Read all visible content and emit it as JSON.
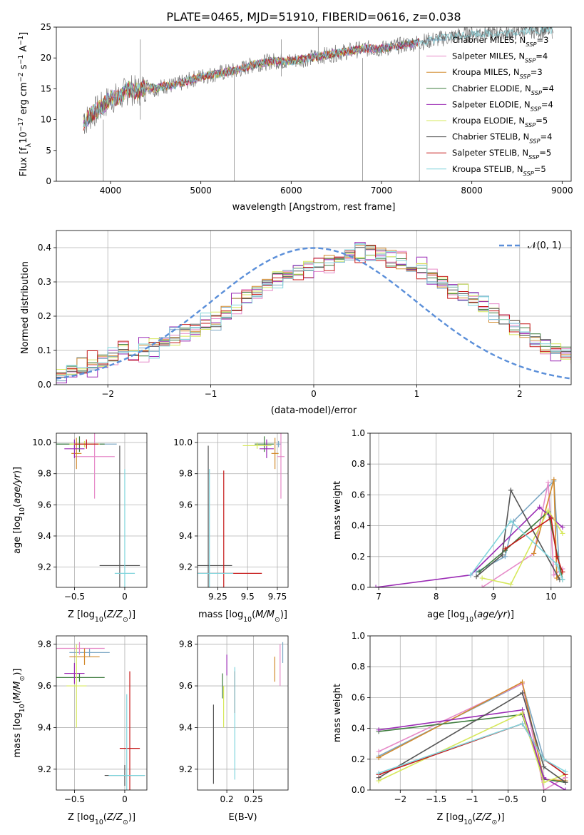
{
  "figure": {
    "title": "PLATE=0465, MJD=51910, FIBERID=0616, z=0.038"
  },
  "legend_entries": [
    {
      "model": "Chabrier MILES",
      "n": "3",
      "color": "#7ba7c4"
    },
    {
      "model": "Salpeter MILES",
      "n": "4",
      "color": "#e68ac8"
    },
    {
      "model": "Kroupa MILES",
      "n": "3",
      "color": "#d28a2c"
    },
    {
      "model": "Chabrier ELODIE",
      "n": "4",
      "color": "#3f7d3f"
    },
    {
      "model": "Salpeter ELODIE",
      "n": "4",
      "color": "#9b2bb5"
    },
    {
      "model": "Kroupa ELODIE",
      "n": "5",
      "color": "#d6e85b"
    },
    {
      "model": "Chabrier STELIB",
      "n": "4",
      "color": "#555555"
    },
    {
      "model": "Salpeter STELIB",
      "n": "5",
      "color": "#c61a1a"
    },
    {
      "model": "Kroupa STELIB",
      "n": "5",
      "color": "#80d4dc"
    }
  ],
  "chart_data": [
    {
      "type": "line",
      "name": "spectrum",
      "xlabel": "wavelength [Angstrom, rest frame]",
      "ylabel": "Flux [f_λ10^-17 erg cm^-2 s^-1 A^-1]",
      "xlim": [
        3400,
        9100
      ],
      "ylim": [
        0,
        25
      ],
      "xticks": [
        4000,
        5000,
        6000,
        7000,
        8000,
        9000
      ],
      "yticks": [
        0,
        5,
        10,
        15,
        20,
        25
      ],
      "legend": "top-right",
      "grid": false,
      "observed": {
        "x": [
          3700,
          3800,
          3900,
          4000,
          4100,
          4200,
          4300,
          4400,
          4500,
          4600,
          4700,
          4800,
          4900,
          5000,
          5200,
          5400,
          5600,
          5800,
          6000,
          6200,
          6400,
          6600,
          6800,
          7000,
          7200,
          7400,
          7600,
          7800,
          8000,
          8200,
          8400,
          8600,
          8800,
          8900
        ],
        "y": [
          9.5,
          11,
          12,
          13.5,
          13.5,
          15,
          14.5,
          15.5,
          15,
          15.5,
          15.5,
          16,
          16.5,
          17,
          17.5,
          18,
          19,
          19.5,
          19.5,
          20,
          20.5,
          21,
          21.5,
          21.5,
          22,
          22.5,
          23,
          23.5,
          24,
          24,
          24,
          24.5,
          24.5,
          24.5
        ]
      },
      "model_extent": {
        "wave_max": [
          7400,
          7400,
          7400,
          7400,
          7400,
          6800,
          8900,
          7420,
          8900
        ]
      },
      "spikes": [
        {
          "x": 3920,
          "y0": 0,
          "y1": 10
        },
        {
          "x": 4330,
          "y0": 10,
          "y1": 23
        },
        {
          "x": 5370,
          "y0": 0,
          "y1": 18
        },
        {
          "x": 5890,
          "y0": 17,
          "y1": 23
        },
        {
          "x": 6300,
          "y0": 19,
          "y1": 25
        },
        {
          "x": 6790,
          "y0": 0,
          "y1": 20
        },
        {
          "x": 7420,
          "y0": 0,
          "y1": 22
        }
      ]
    },
    {
      "type": "step",
      "name": "residual histogram",
      "xlabel": "(data-model)/error",
      "ylabel": "Normed distribution",
      "xlim": [
        -2.5,
        2.5
      ],
      "ylim": [
        0,
        0.45
      ],
      "xticks": [
        -2,
        -1,
        0,
        1,
        2
      ],
      "yticks": [
        0.0,
        0.1,
        0.2,
        0.3,
        0.4
      ],
      "grid": true,
      "legend": "top-right",
      "reference": {
        "label": "𝒩(0, 1)",
        "mu": 0,
        "sigma": 1,
        "color": "#5b8fd9"
      },
      "bin_width": 0.1,
      "bin_start": -2.5,
      "counts_base": [
        0.03,
        0.04,
        0.05,
        0.06,
        0.07,
        0.08,
        0.09,
        0.09,
        0.1,
        0.11,
        0.12,
        0.14,
        0.15,
        0.16,
        0.18,
        0.19,
        0.21,
        0.23,
        0.25,
        0.27,
        0.29,
        0.31,
        0.32,
        0.33,
        0.34,
        0.35,
        0.36,
        0.37,
        0.38,
        0.39,
        0.39,
        0.38,
        0.37,
        0.36,
        0.35,
        0.34,
        0.32,
        0.3,
        0.28,
        0.27,
        0.25,
        0.23,
        0.21,
        0.19,
        0.17,
        0.15,
        0.13,
        0.11,
        0.1,
        0.09,
        0.08,
        0.07,
        0.06,
        0.05,
        0.05,
        0.04,
        0.04,
        0.03,
        0.03,
        0.02
      ],
      "series_offsets": [
        0.012,
        -0.015,
        0.008,
        -0.01,
        0.018,
        -0.006,
        0.004,
        -0.02,
        0.014
      ]
    },
    {
      "type": "errorbar",
      "name": "age vs Z",
      "xlabel": "Z [log10(Z/Z⊙)]",
      "ylabel": "age  [log10(age/yr)]",
      "xlim": [
        -0.68,
        0.22
      ],
      "ylim": [
        9.07,
        10.06
      ],
      "xticks": [
        -0.5,
        0.0
      ],
      "yticks": [
        9.2,
        9.4,
        9.6,
        9.8,
        10.0
      ],
      "grid": true,
      "points": [
        {
          "s": 0,
          "x": -0.38,
          "xe": 0.3,
          "y": 9.99,
          "ye": 0.02
        },
        {
          "s": 1,
          "x": -0.3,
          "xe": 0.2,
          "y": 9.91,
          "ye": 0.27
        },
        {
          "s": 2,
          "x": -0.48,
          "xe": 0.05,
          "y": 9.93,
          "ye": 0.1
        },
        {
          "s": 3,
          "x": -0.45,
          "xe": 0.25,
          "y": 9.99,
          "ye": 0.05
        },
        {
          "s": 4,
          "x": -0.5,
          "xe": 0.1,
          "y": 9.96,
          "ye": 0.06
        },
        {
          "s": 5,
          "x": -0.4,
          "xe": 0.15,
          "y": 9.99,
          "ye": 0.02
        },
        {
          "s": 6,
          "x": -0.05,
          "xe": 0.2,
          "y": 9.21,
          "ye": 0.77
        },
        {
          "s": 7,
          "x": -0.38,
          "xe": 0.12,
          "y": 9.99,
          "ye": 0.03
        },
        {
          "s": 8,
          "x": 0.0,
          "xe": 0.1,
          "y": 9.16,
          "ye": 0.67
        }
      ]
    },
    {
      "type": "errorbar",
      "name": "age vs mass",
      "xlabel": "mass [log10(M/M⊙)]",
      "ylabel": "",
      "xlim": [
        9.08,
        9.84
      ],
      "ylim": [
        9.07,
        10.06
      ],
      "xticks": [
        9.25,
        9.5,
        9.75
      ],
      "yticks": [
        9.2,
        9.4,
        9.6,
        9.8,
        10.0
      ],
      "grid": true,
      "points": [
        {
          "s": 0,
          "x": 9.76,
          "xe": 0.02,
          "y": 9.99,
          "ye": 0.02
        },
        {
          "s": 1,
          "x": 9.78,
          "xe": 0.03,
          "y": 9.91,
          "ye": 0.27
        },
        {
          "s": 2,
          "x": 9.73,
          "xe": 0.03,
          "y": 9.93,
          "ye": 0.1
        },
        {
          "s": 3,
          "x": 9.64,
          "xe": 0.08,
          "y": 9.99,
          "ye": 0.05
        },
        {
          "s": 4,
          "x": 9.66,
          "xe": 0.06,
          "y": 9.96,
          "ye": 0.06
        },
        {
          "s": 5,
          "x": 9.58,
          "xe": 0.12,
          "y": 9.98,
          "ye": 0.02
        },
        {
          "s": 6,
          "x": 9.17,
          "xe": 0.2,
          "y": 9.21,
          "ye": 0.77
        },
        {
          "s": 7,
          "x": 9.3,
          "xe": 0.32,
          "y": 9.16,
          "ye": 0.66
        },
        {
          "s": 8,
          "x": 9.18,
          "xe": 0.2,
          "y": 9.16,
          "ye": 0.67
        }
      ]
    },
    {
      "type": "line",
      "name": "mass weight vs age",
      "xlabel": "age  [log10(age/yr)]",
      "ylabel": "mass weight",
      "xlim": [
        6.85,
        10.35
      ],
      "ylim": [
        0,
        1
      ],
      "xticks": [
        7,
        8,
        9,
        10
      ],
      "yticks": [
        0.0,
        0.2,
        0.4,
        0.6,
        0.8,
        1.0
      ],
      "grid": true,
      "series": [
        {
          "s": 0,
          "x": [
            8.7,
            9.2,
            9.35,
            10.05,
            10.15
          ],
          "y": [
            0.1,
            0.2,
            0.43,
            0.69,
            0.1
          ]
        },
        {
          "s": 1,
          "x": [
            8.8,
            9.7,
            9.95,
            10.05,
            10.2
          ],
          "y": [
            0.0,
            0.22,
            0.68,
            0.08,
            0.12
          ]
        },
        {
          "s": 2,
          "x": [
            9.7,
            10.05,
            10.1,
            10.2
          ],
          "y": [
            0.22,
            0.7,
            0.06,
            0.1
          ]
        },
        {
          "s": 3,
          "x": [
            8.75,
            9.2,
            9.95,
            10.2
          ],
          "y": [
            0.1,
            0.24,
            0.49,
            0.05
          ]
        },
        {
          "s": 4,
          "x": [
            6.95,
            8.6,
            9.8,
            10.2
          ],
          "y": [
            0.0,
            0.08,
            0.52,
            0.39
          ]
        },
        {
          "s": 5,
          "x": [
            8.8,
            9.3,
            9.95,
            10.2
          ],
          "y": [
            0.06,
            0.02,
            0.5,
            0.35
          ]
        },
        {
          "s": 6,
          "x": [
            8.7,
            9.15,
            9.3,
            10.15
          ],
          "y": [
            0.07,
            0.21,
            0.63,
            0.05
          ]
        },
        {
          "s": 7,
          "x": [
            9.2,
            10.0,
            10.1,
            10.2
          ],
          "y": [
            0.25,
            0.45,
            0.2,
            0.1
          ]
        },
        {
          "s": 8,
          "x": [
            8.6,
            9.3,
            10.1,
            10.2
          ],
          "y": [
            0.08,
            0.43,
            0.15,
            0.05
          ]
        }
      ]
    },
    {
      "type": "errorbar",
      "name": "mass vs Z",
      "xlabel": "Z [log10(Z/Z⊙)]",
      "ylabel": "mass [log10(M/M⊙)]",
      "xlim": [
        -0.68,
        0.22
      ],
      "ylim": [
        9.1,
        9.84
      ],
      "xticks": [
        -0.5,
        0.0
      ],
      "yticks": [
        9.2,
        9.4,
        9.6,
        9.8
      ],
      "grid": true,
      "points": [
        {
          "s": 0,
          "x": -0.35,
          "xe": 0.2,
          "y": 9.76,
          "ye": 0.02
        },
        {
          "s": 1,
          "x": -0.45,
          "xe": 0.25,
          "y": 9.78,
          "ye": 0.03
        },
        {
          "s": 2,
          "x": -0.4,
          "xe": 0.15,
          "y": 9.74,
          "ye": 0.04
        },
        {
          "s": 3,
          "x": -0.45,
          "xe": 0.25,
          "y": 9.64,
          "ye": 0.02
        },
        {
          "s": 4,
          "x": -0.5,
          "xe": 0.1,
          "y": 9.66,
          "ye": 0.05
        },
        {
          "s": 5,
          "x": -0.48,
          "xe": 0.1,
          "y": 9.6,
          "ye": 0.2
        },
        {
          "s": 6,
          "x": 0.0,
          "xe": 0.2,
          "y": 9.17,
          "ye": 0.05
        },
        {
          "s": 7,
          "x": 0.05,
          "xe": 0.1,
          "y": 9.3,
          "ye": 0.37
        },
        {
          "s": 8,
          "x": 0.02,
          "xe": 0.18,
          "y": 9.17,
          "ye": 0.39
        }
      ]
    },
    {
      "type": "errorbar",
      "name": "mass vs E(B-V)",
      "xlabel": "E(B-V)",
      "ylabel": "",
      "xlim": [
        0.145,
        0.315
      ],
      "ylim": [
        9.1,
        9.84
      ],
      "xticks": [
        0.2,
        0.25
      ],
      "yticks": [
        9.2,
        9.4,
        9.6,
        9.8
      ],
      "grid": true,
      "points": [
        {
          "s": 0,
          "x": 0.305,
          "y": 9.76,
          "ye": 0.05
        },
        {
          "s": 1,
          "x": 0.3,
          "y": 9.7,
          "ye": 0.1
        },
        {
          "s": 2,
          "x": 0.29,
          "y": 9.68,
          "ye": 0.06
        },
        {
          "s": 3,
          "x": 0.192,
          "y": 9.6,
          "ye": 0.06
        },
        {
          "s": 4,
          "x": 0.2,
          "y": 9.7,
          "ye": 0.05
        },
        {
          "s": 5,
          "x": 0.194,
          "y": 9.5,
          "ye": 0.1
        },
        {
          "s": 6,
          "x": 0.175,
          "y": 9.32,
          "ye": 0.19
        },
        {
          "s": 7,
          "x": 0.215,
          "y": 9.57,
          "ye": 0.1
        },
        {
          "s": 8,
          "x": 0.215,
          "y": 9.42,
          "ye": 0.27
        }
      ]
    },
    {
      "type": "line",
      "name": "mass weight vs Z",
      "xlabel": "Z [log10(Z/Z⊙)]",
      "ylabel": "mass weight",
      "xlim": [
        -2.42,
        0.38
      ],
      "ylim": [
        0,
        1
      ],
      "xticks": [
        -2.0,
        -1.5,
        -1.0,
        -0.5,
        0.0
      ],
      "yticks": [
        0.0,
        0.2,
        0.4,
        0.6,
        0.8,
        1.0
      ],
      "grid": true,
      "series": [
        {
          "s": 0,
          "x": [
            -2.3,
            -0.3,
            0.0,
            0.3
          ],
          "y": [
            0.22,
            0.69,
            0.2,
            0.1
          ]
        },
        {
          "s": 1,
          "x": [
            -2.3,
            -0.3,
            0.0,
            0.3
          ],
          "y": [
            0.25,
            0.69,
            0.0,
            0.08
          ]
        },
        {
          "s": 2,
          "x": [
            -2.3,
            -0.3,
            0.0,
            0.3
          ],
          "y": [
            0.21,
            0.7,
            0.07,
            0.06
          ]
        },
        {
          "s": 3,
          "x": [
            -2.3,
            -0.3,
            0.0,
            0.3
          ],
          "y": [
            0.38,
            0.49,
            0.07,
            0.05
          ]
        },
        {
          "s": 4,
          "x": [
            -2.3,
            -0.3,
            0.0,
            0.3
          ],
          "y": [
            0.39,
            0.52,
            0.08,
            0.0
          ]
        },
        {
          "s": 5,
          "x": [
            -2.3,
            -0.3,
            0.0,
            0.3
          ],
          "y": [
            0.06,
            0.5,
            0.05,
            0.1
          ]
        },
        {
          "s": 6,
          "x": [
            -2.3,
            -0.3,
            0.0,
            0.3
          ],
          "y": [
            0.08,
            0.63,
            0.15,
            0.05
          ]
        },
        {
          "s": 7,
          "x": [
            -2.3,
            -0.3,
            0.0,
            0.3
          ],
          "y": [
            0.1,
            0.43,
            0.2,
            0.1
          ]
        },
        {
          "s": 8,
          "x": [
            -2.3,
            -0.3,
            0.0,
            0.3
          ],
          "y": [
            0.11,
            0.43,
            0.2,
            0.12
          ]
        }
      ]
    }
  ]
}
